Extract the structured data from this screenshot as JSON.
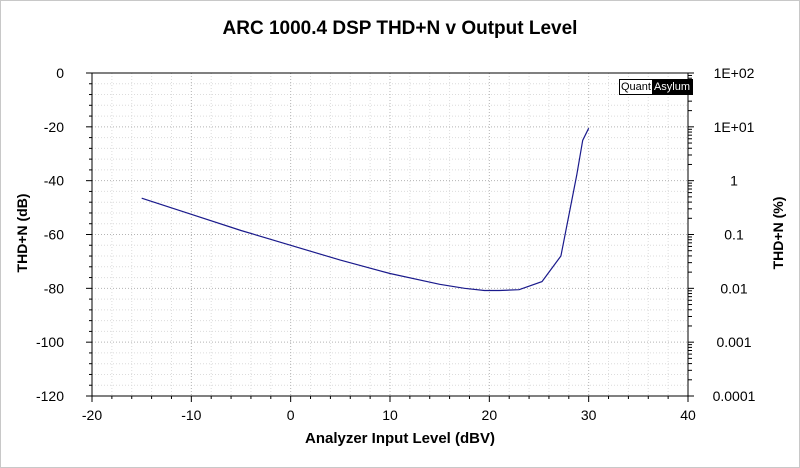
{
  "chart_data": {
    "type": "line",
    "title": "ARC 1000.4 DSP THD+N v Output Level",
    "xlabel": "Analyzer Input Level (dBV)",
    "ylabel": "THD+N (dB)",
    "ylabel_right": "THD+N (%)",
    "xlim": [
      -20,
      40
    ],
    "ylim": [
      -120,
      0
    ],
    "x_ticks": [
      -20,
      -10,
      0,
      10,
      20,
      30,
      40
    ],
    "y_ticks": [
      0,
      -20,
      -40,
      -60,
      -80,
      -100,
      -120
    ],
    "y_ticks_right": [
      "1E+02",
      "1E+01",
      "1",
      "0.1",
      "0.01",
      "0.001",
      "0.0001"
    ],
    "grid": true,
    "line_color": "#1a1a8c",
    "series": [
      {
        "x": [
          -15,
          -10,
          -5,
          0,
          5,
          10,
          15,
          17.5,
          19.5,
          21,
          23,
          25.3,
          27.2,
          28.8,
          29.4,
          30
        ],
        "y": [
          -46.5,
          -52.5,
          -58.5,
          -64,
          -69.5,
          -74.5,
          -78.5,
          -80,
          -80.8,
          -80.8,
          -80.5,
          -77.5,
          -68,
          -38,
          -25,
          -20.5
        ]
      }
    ]
  },
  "badge": {
    "left": "Quant",
    "right": "Asylum"
  }
}
